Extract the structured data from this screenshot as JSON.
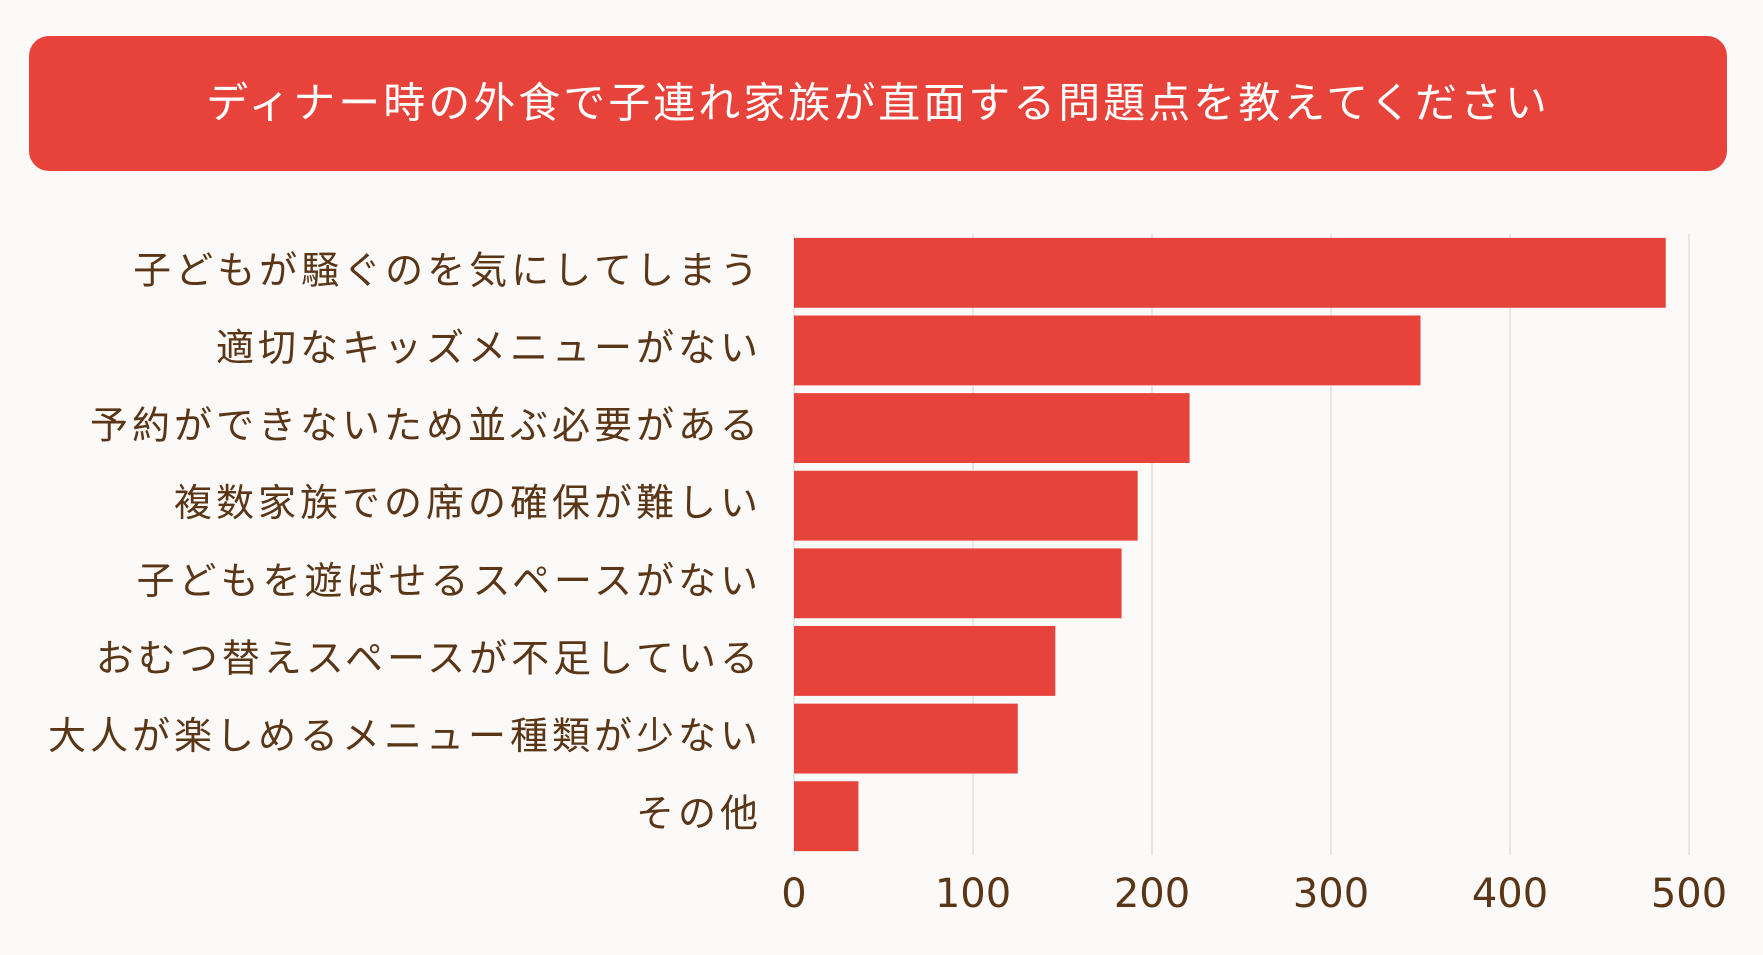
{
  "chart_data": {
    "type": "hbar",
    "title": "ディナー時の外食で子連れ家族が直面する問題点を教えてください",
    "categories": [
      "子どもが騒ぐのを気にしてしまう",
      "適切なキッズメニューがない",
      "予約ができないため並ぶ必要がある",
      "複数家族での席の確保が難しい",
      "子どもを遊ばせるスペースがない",
      "おむつ替えスペースが不足している",
      "大人が楽しめるメニュー種類が少ない",
      "その他"
    ],
    "values": [
      487,
      350,
      221,
      192,
      183,
      146,
      125,
      36
    ],
    "color": "#e8433b",
    "xlim": [
      0,
      500
    ],
    "xticks": [
      0,
      100,
      200,
      300,
      400,
      500
    ],
    "grid": true
  }
}
